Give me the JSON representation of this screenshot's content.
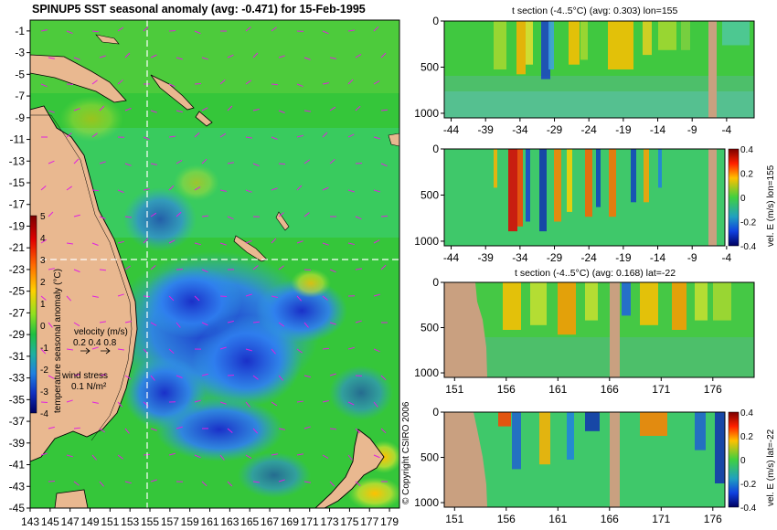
{
  "chart_data": [
    {
      "type": "heatmap",
      "title": "SPINUP5 SST seasonal anomaly (avg: -0.471) for 15-Feb-1995",
      "y_ticks": [
        "-1",
        "-3",
        "-5",
        "-7",
        "-9",
        "-11",
        "-13",
        "-15",
        "-17",
        "-19",
        "-21",
        "-23",
        "-25",
        "-27",
        "-29",
        "-31",
        "-33",
        "-35",
        "-37",
        "-39",
        "-41",
        "-43",
        "-45"
      ],
      "x_ticks": [
        "143",
        "145",
        "147",
        "149",
        "151",
        "153",
        "155",
        "157",
        "159",
        "161",
        "163",
        "165",
        "167",
        "169",
        "171",
        "173",
        "175",
        "177",
        "179"
      ],
      "xlim": [
        143,
        180
      ],
      "ylim": [
        -45,
        0
      ],
      "section_lon": 155,
      "section_lat": -22,
      "colorbar": {
        "label": "temperature seasonal anomaly (°C)",
        "ticks": [
          "5",
          "4",
          "3",
          "2",
          "1",
          "0",
          "-1",
          "-2",
          "-3",
          "-4"
        ],
        "range": [
          -4,
          5
        ]
      },
      "velocity_legend": {
        "label": "velocity (m/s)",
        "values": "0.2 0.4 0.8"
      },
      "wind_legend": {
        "label": "wind stress",
        "value": "0.1 N/m²"
      }
    },
    {
      "type": "heatmap",
      "title": "t section (-4..5°C) (avg: 0.303) lon=155",
      "x_ticks": [
        "-44",
        "-39",
        "-34",
        "-29",
        "-24",
        "-19",
        "-14",
        "-9",
        "-4"
      ],
      "y_ticks": [
        "0",
        "500",
        "1000"
      ],
      "xlim": [
        -45,
        0
      ],
      "ylim": [
        1050,
        0
      ]
    },
    {
      "type": "heatmap",
      "title": "",
      "x_ticks": [
        "-44",
        "-39",
        "-34",
        "-29",
        "-24",
        "-19",
        "-14",
        "-9",
        "-4"
      ],
      "y_ticks": [
        "0",
        "500",
        "1000"
      ],
      "xlim": [
        -45,
        0
      ],
      "ylim": [
        1050,
        0
      ],
      "colorbar": {
        "label": "vel. E (m/s) lon=155",
        "ticks": [
          "0.4",
          "0.2",
          "0",
          "-0.2",
          "-0.4"
        ],
        "range": [
          -0.4,
          0.4
        ]
      }
    },
    {
      "type": "heatmap",
      "title": "t section (-4..5°C) (avg: 0.168) lat=-22",
      "x_ticks": [
        "151",
        "156",
        "161",
        "166",
        "171",
        "176"
      ],
      "y_ticks": [
        "0",
        "500",
        "1000"
      ],
      "xlim": [
        150,
        180
      ],
      "ylim": [
        1050,
        0
      ]
    },
    {
      "type": "heatmap",
      "title": "",
      "x_ticks": [
        "151",
        "156",
        "161",
        "166",
        "171",
        "176"
      ],
      "y_ticks": [
        "0",
        "500",
        "1000"
      ],
      "xlim": [
        150,
        180
      ],
      "ylim": [
        1050,
        0
      ],
      "colorbar": {
        "label": "vel. E (m/s) lat=-22",
        "ticks": [
          "0.4",
          "0.2",
          "0",
          "-0.2",
          "-0.4"
        ],
        "range": [
          -0.4,
          0.4
        ]
      }
    }
  ],
  "copyright": "© Copyright CSIRO 2006",
  "colors": {
    "land": "#e9b890",
    "section_land": "#c9a080",
    "ocean_base": "#35c63a",
    "cold": "#2a6cf0",
    "warm": "#f0a018",
    "arrow": "#e020e0"
  }
}
